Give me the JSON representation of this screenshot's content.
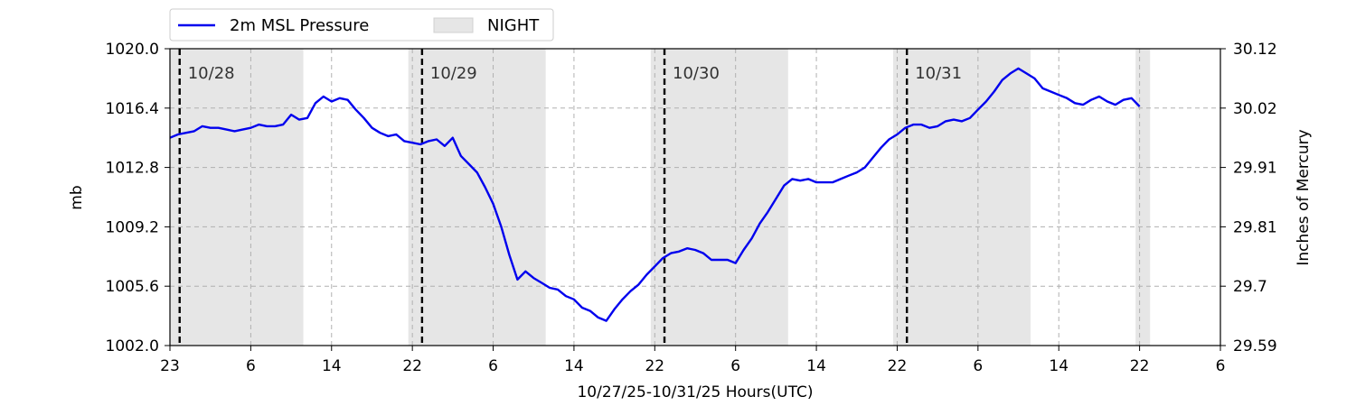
{
  "chart_data": {
    "type": "line",
    "xlabel": "10/27/25-10/31/25  Hours(UTC)",
    "ylabel_left": "mb",
    "ylabel_right": "Inches of Mercury",
    "ylim": [
      1002.0,
      1020.0
    ],
    "y_ticks": [
      "1002.0",
      "1005.6",
      "1009.2",
      "1012.8",
      "1016.4",
      "1020.0"
    ],
    "y2_ticks": [
      "29.59",
      "29.7",
      "29.81",
      "29.91",
      "30.02",
      "30.12"
    ],
    "x_ticks": [
      "23",
      "6",
      "14",
      "22",
      "6",
      "14",
      "22",
      "6",
      "14",
      "22",
      "6",
      "14",
      "22",
      "6"
    ],
    "xlim_hours": [
      0,
      130
    ],
    "grid": true,
    "legend_position": "top-left",
    "legend": {
      "series_label": "2m MSL Pressure",
      "night_label": "NIGHT"
    },
    "line_color": "#0000ee",
    "night_color": "#e6e6e6",
    "day_markers": [
      {
        "label": "10/28",
        "hour": 1.2
      },
      {
        "label": "10/29",
        "hour": 31.2
      },
      {
        "label": "10/30",
        "hour": 61.2
      },
      {
        "label": "10/31",
        "hour": 91.2
      }
    ],
    "night_bands": [
      [
        0,
        16.5
      ],
      [
        29.5,
        46.5
      ],
      [
        59.5,
        76.5
      ],
      [
        89.5,
        106.5
      ],
      [
        119.5,
        121.3
      ]
    ],
    "series": [
      {
        "name": "2m MSL Pressure",
        "x": [
          0,
          1,
          2,
          3,
          4,
          5,
          6,
          7,
          8,
          9,
          10,
          11,
          12,
          13,
          14,
          15,
          16,
          17,
          18,
          19,
          20,
          21,
          22,
          23,
          24,
          25,
          26,
          27,
          28,
          29,
          30,
          31,
          32,
          33,
          34,
          35,
          36,
          37,
          38,
          39,
          40,
          41,
          42,
          43,
          44,
          45,
          46,
          47,
          48,
          49,
          50,
          51,
          52,
          53,
          54,
          55,
          56,
          57,
          58,
          59,
          60,
          61,
          62,
          63,
          64,
          65,
          66,
          67,
          68,
          69,
          70,
          71,
          72,
          73,
          74,
          75,
          76,
          77,
          78,
          79,
          80,
          81,
          82,
          83,
          84,
          85,
          86,
          87,
          88,
          89,
          90,
          91,
          92,
          93,
          94,
          95,
          96,
          97,
          98,
          99,
          100,
          101,
          102,
          103,
          104,
          105,
          106,
          107,
          108,
          109,
          110,
          111,
          112,
          113,
          114,
          115,
          116,
          117,
          118,
          119,
          120
        ],
        "y": [
          1014.6,
          1014.8,
          1014.9,
          1015.0,
          1015.3,
          1015.2,
          1015.2,
          1015.1,
          1015.0,
          1015.1,
          1015.2,
          1015.4,
          1015.3,
          1015.3,
          1015.4,
          1016.0,
          1015.7,
          1015.8,
          1016.7,
          1017.1,
          1016.8,
          1017.0,
          1016.9,
          1016.3,
          1015.8,
          1015.2,
          1014.9,
          1014.7,
          1014.8,
          1014.4,
          1014.3,
          1014.2,
          1014.4,
          1014.5,
          1014.1,
          1014.6,
          1013.5,
          1013.0,
          1012.5,
          1011.6,
          1010.6,
          1009.2,
          1007.5,
          1006.0,
          1006.5,
          1006.1,
          1005.8,
          1005.5,
          1005.4,
          1005.0,
          1004.8,
          1004.3,
          1004.1,
          1003.7,
          1003.5,
          1004.2,
          1004.8,
          1005.3,
          1005.7,
          1006.3,
          1006.8,
          1007.3,
          1007.6,
          1007.7,
          1007.9,
          1007.8,
          1007.6,
          1007.2,
          1007.2,
          1007.2,
          1007.0,
          1007.8,
          1008.5,
          1009.4,
          1010.1,
          1010.9,
          1011.7,
          1012.1,
          1012.0,
          1012.1,
          1011.9,
          1011.9,
          1011.9,
          1012.1,
          1012.3,
          1012.5,
          1012.8,
          1013.4,
          1014.0,
          1014.5,
          1014.8,
          1015.2,
          1015.4,
          1015.4,
          1015.2,
          1015.3,
          1015.6,
          1015.7,
          1015.6,
          1015.8,
          1016.3,
          1016.8,
          1017.4,
          1018.1,
          1018.5,
          1018.8,
          1018.5,
          1018.2,
          1017.6,
          1017.4,
          1017.2,
          1017.0,
          1016.7,
          1016.6,
          1016.9,
          1017.1,
          1016.8,
          1016.6,
          1016.9,
          1017.0,
          1016.5
        ]
      }
    ]
  }
}
